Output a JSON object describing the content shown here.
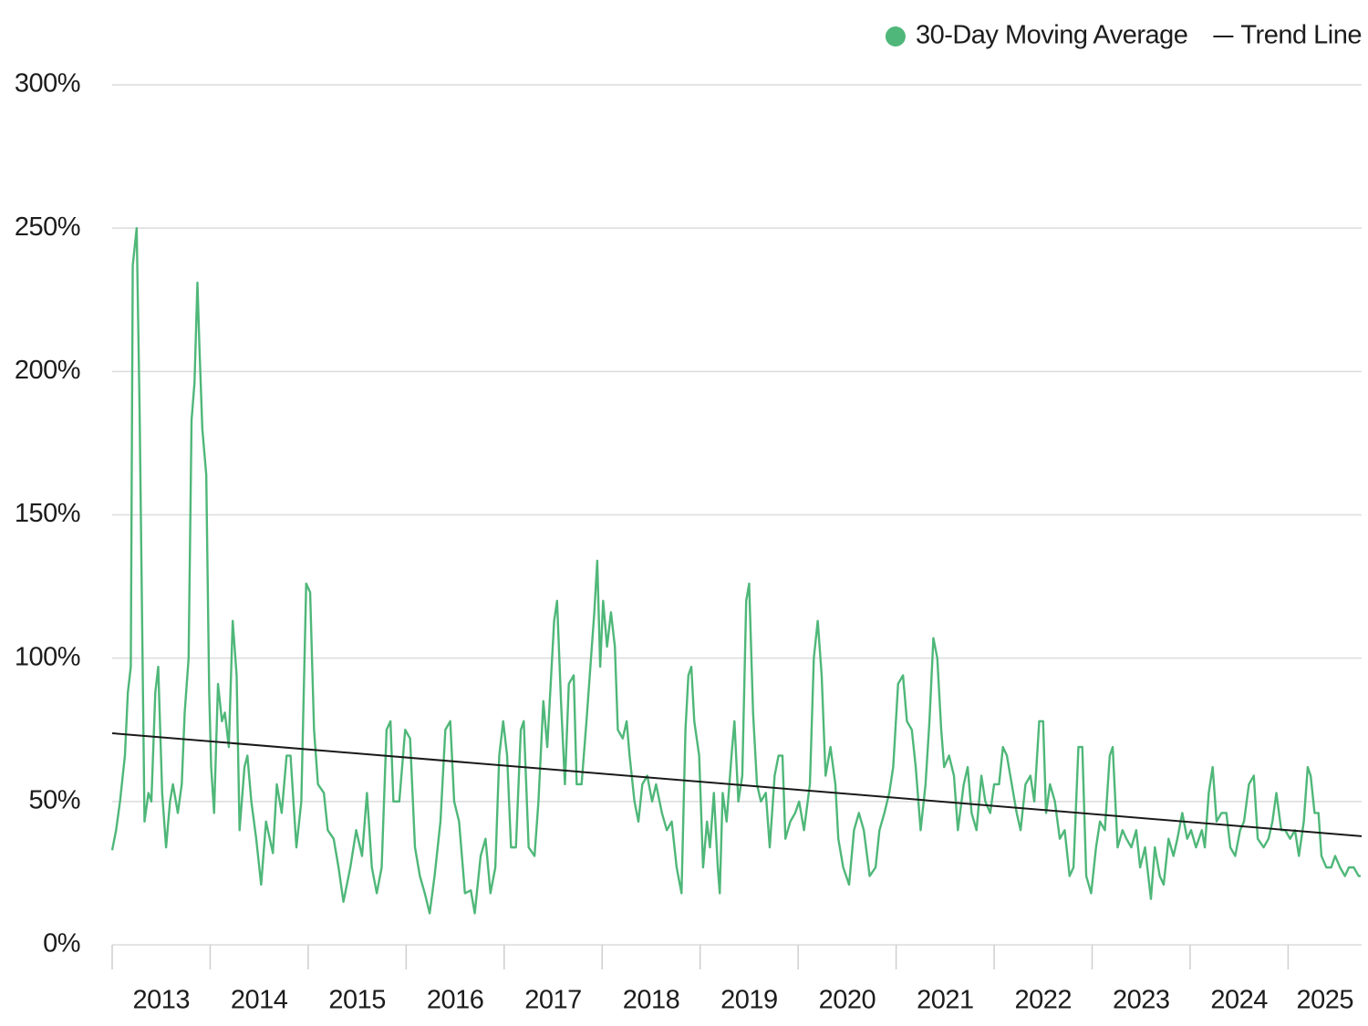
{
  "chart_data": {
    "type": "line",
    "series": [
      {
        "name": "30-Day Moving Average",
        "color": "#4fb779",
        "legend_symbol": "dot",
        "x": [
          2013,
          2013.04,
          2013.08,
          2013.13,
          2013.16,
          2013.19,
          2013.21,
          2013.25,
          2013.28,
          2013.31,
          2013.33,
          2013.37,
          2013.4,
          2013.44,
          2013.47,
          2013.51,
          2013.55,
          2013.59,
          2013.62,
          2013.67,
          2013.71,
          2013.74,
          2013.78,
          2013.81,
          2013.84,
          2013.87,
          2013.89,
          2013.92,
          2013.96,
          2013.99,
          2014.01,
          2014.04,
          2014.08,
          2014.12,
          2014.15,
          2014.19,
          2014.23,
          2014.27,
          2014.3,
          2014.35,
          2014.38,
          2014.42,
          2014.47,
          2014.52,
          2014.57,
          2014.64,
          2014.68,
          2014.73,
          2014.78,
          2014.82,
          2014.88,
          2014.93,
          2014.98,
          2015.02,
          2015.06,
          2015.1,
          2015.16,
          2015.2,
          2015.26,
          2015.31,
          2015.36,
          2015.43,
          2015.49,
          2015.55,
          2015.6,
          2015.65,
          2015.7,
          2015.75,
          2015.8,
          2015.84,
          2015.87,
          2015.93,
          2015.99,
          2016.04,
          2016.09,
          2016.14,
          2016.19,
          2016.24,
          2016.29,
          2016.35,
          2016.4,
          2016.45,
          2016.49,
          2016.54,
          2016.6,
          2016.66,
          2016.7,
          2016.76,
          2016.81,
          2016.86,
          2016.91,
          2016.95,
          2016.99,
          2017.03,
          2017.07,
          2017.12,
          2017.17,
          2017.2,
          2017.25,
          2017.31,
          2017.35,
          2017.4,
          2017.44,
          2017.47,
          2017.51,
          2017.54,
          2017.58,
          2017.62,
          2017.66,
          2017.71,
          2017.74,
          2017.79,
          2017.84,
          2017.88,
          2017.92,
          2017.95,
          2017.98,
          2018.01,
          2018.05,
          2018.09,
          2018.13,
          2018.16,
          2018.21,
          2018.25,
          2018.28,
          2018.33,
          2018.37,
          2018.41,
          2018.46,
          2018.51,
          2018.55,
          2018.61,
          2018.66,
          2018.71,
          2018.76,
          2018.81,
          2018.85,
          2018.88,
          2018.91,
          2018.94,
          2018.99,
          2019.03,
          2019.07,
          2019.1,
          2019.14,
          2019.18,
          2019.2,
          2019.23,
          2019.27,
          2019.32,
          2019.35,
          2019.39,
          2019.43,
          2019.47,
          2019.5,
          2019.54,
          2019.58,
          2019.62,
          2019.67,
          2019.71,
          2019.76,
          2019.8,
          2019.84,
          2019.87,
          2019.92,
          2019.97,
          2020.01,
          2020.06,
          2020.12,
          2020.16,
          2020.2,
          2020.24,
          2020.28,
          2020.33,
          2020.38,
          2020.41,
          2020.46,
          2020.52,
          2020.57,
          2020.62,
          2020.67,
          2020.73,
          2020.79,
          2020.83,
          2020.88,
          2020.93,
          2020.97,
          2021.02,
          2021.07,
          2021.11,
          2021.16,
          2021.2,
          2021.25,
          2021.3,
          2021.34,
          2021.38,
          2021.42,
          2021.46,
          2021.49,
          2021.54,
          2021.59,
          2021.63,
          2021.69,
          2021.73,
          2021.77,
          2021.82,
          2021.87,
          2021.91,
          2021.96,
          2022,
          2022.05,
          2022.09,
          2022.13,
          2022.18,
          2022.23,
          2022.27,
          2022.32,
          2022.37,
          2022.41,
          2022.46,
          2022.5,
          2022.53,
          2022.57,
          2022.62,
          2022.67,
          2022.72,
          2022.77,
          2022.81,
          2022.86,
          2022.9,
          2022.94,
          2022.99,
          2023.04,
          2023.08,
          2023.13,
          2023.18,
          2023.21,
          2023.26,
          2023.31,
          2023.35,
          2023.4,
          2023.45,
          2023.49,
          2023.54,
          2023.6,
          2023.64,
          2023.69,
          2023.73,
          2023.78,
          2023.83,
          2023.87,
          2023.92,
          2023.97,
          2024.01,
          2024.06,
          2024.12,
          2024.15,
          2024.19,
          2024.23,
          2024.27,
          2024.32,
          2024.37,
          2024.41,
          2024.46,
          2024.51,
          2024.55,
          2024.6,
          2024.65,
          2024.69,
          2024.75,
          2024.8,
          2024.84,
          2024.88,
          2024.93,
          2024.97,
          2025.02,
          2025.07,
          2025.11,
          2025.16,
          2025.2,
          2025.23,
          2025.27,
          2025.31,
          2025.34,
          2025.39,
          2025.44,
          2025.48,
          2025.53,
          2025.58,
          2025.62,
          2025.67,
          2025.72,
          2025.74
        ],
        "values": [
          33,
          40,
          50,
          66,
          88,
          97,
          237,
          250,
          186,
          100,
          43,
          53,
          50,
          88,
          97,
          53,
          34,
          50,
          56,
          46,
          56,
          81,
          100,
          183,
          196,
          231,
          209,
          180,
          164,
          88,
          62,
          46,
          91,
          78,
          81,
          69,
          113,
          94,
          40,
          62,
          66,
          50,
          37,
          21,
          43,
          32,
          56,
          46,
          66,
          66,
          34,
          50,
          126,
          123,
          75,
          56,
          53,
          40,
          37,
          27,
          15,
          27,
          40,
          31,
          53,
          27,
          18,
          27,
          75,
          78,
          50,
          50,
          75,
          72,
          34,
          24,
          18,
          11,
          24,
          43,
          75,
          78,
          50,
          43,
          18,
          19,
          11,
          31,
          37,
          18,
          27,
          66,
          78,
          66,
          34,
          34,
          75,
          78,
          34,
          31,
          50,
          85,
          69,
          88,
          113,
          120,
          85,
          56,
          91,
          94,
          56,
          56,
          78,
          97,
          116,
          134,
          97,
          120,
          104,
          116,
          104,
          75,
          72,
          78,
          66,
          50,
          43,
          56,
          59,
          50,
          56,
          46,
          40,
          43,
          27,
          18,
          75,
          94,
          97,
          78,
          66,
          27,
          43,
          34,
          53,
          27,
          18,
          53,
          43,
          66,
          78,
          50,
          59,
          120,
          126,
          81,
          56,
          50,
          53,
          34,
          59,
          66,
          66,
          37,
          43,
          46,
          50,
          40,
          56,
          100,
          113,
          94,
          59,
          69,
          56,
          37,
          27,
          21,
          40,
          46,
          40,
          24,
          27,
          40,
          46,
          53,
          62,
          91,
          94,
          78,
          75,
          62,
          40,
          56,
          78,
          107,
          100,
          75,
          62,
          66,
          59,
          40,
          56,
          62,
          46,
          40,
          59,
          50,
          46,
          56,
          56,
          69,
          66,
          56,
          46,
          40,
          56,
          59,
          50,
          78,
          78,
          46,
          56,
          50,
          37,
          40,
          24,
          27,
          69,
          69,
          24,
          18,
          34,
          43,
          40,
          66,
          69,
          34,
          40,
          37,
          34,
          40,
          27,
          34,
          16,
          34,
          24,
          21,
          37,
          31,
          37,
          46,
          37,
          40,
          34,
          40,
          34,
          53,
          62,
          43,
          46,
          46,
          34,
          31,
          40,
          43,
          56,
          59,
          37,
          34,
          37,
          43,
          53,
          40,
          40,
          37,
          40,
          31,
          43,
          62,
          59,
          46,
          46,
          31,
          27,
          27,
          31,
          27,
          24,
          27,
          27,
          24,
          24
        ]
      },
      {
        "name": "Trend Line",
        "color": "#1a1a1a",
        "legend_symbol": "line",
        "x": [
          2013,
          2025.75
        ],
        "values": [
          73.8,
          37.9
        ]
      }
    ],
    "xlim": [
      2013,
      2025.75
    ],
    "xticks": [
      2013,
      2014,
      2015,
      2016,
      2017,
      2018,
      2019,
      2020,
      2021,
      2022,
      2023,
      2024,
      2025
    ],
    "ylim": [
      0,
      300
    ],
    "yticks": [
      {
        "value": 0,
        "label": "0%"
      },
      {
        "value": 50,
        "label": "50%"
      },
      {
        "value": 100,
        "label": "100%"
      },
      {
        "value": 150,
        "label": "150%"
      },
      {
        "value": 200,
        "label": "200%"
      },
      {
        "value": 250,
        "label": "250%"
      },
      {
        "value": 300,
        "label": "300%"
      }
    ],
    "grid": true,
    "legend": "top-right"
  }
}
